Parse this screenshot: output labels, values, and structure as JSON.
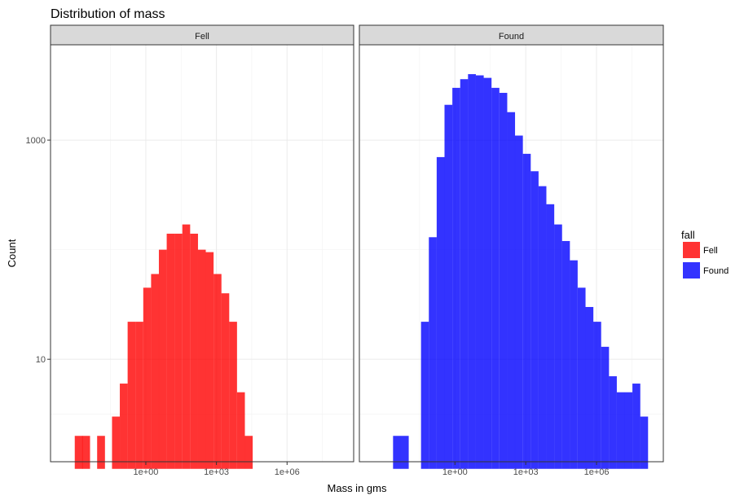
{
  "chart_data": {
    "type": "bar",
    "title": "Distribution of  mass",
    "xlabel": "Mass in gms",
    "ylabel": "Count",
    "x_scale": "log10",
    "y_scale": "log10",
    "x_ticks": [
      "1e+00",
      "1e+03",
      "1e+06"
    ],
    "y_ticks": [
      "10",
      "1000"
    ],
    "legend": {
      "title": "fall",
      "position": "right"
    },
    "panels": [
      {
        "name": "Fell",
        "color": "#ff0000",
        "bin_width_log10": 0.333,
        "bins": [
          {
            "x": 0.0014,
            "count": 2
          },
          {
            "x": 0.0029,
            "count": 2
          },
          {
            "x": 0.0125,
            "count": 2
          },
          {
            "x": 0.0536,
            "count": 3
          },
          {
            "x": 0.115,
            "count": 6
          },
          {
            "x": 0.247,
            "count": 22
          },
          {
            "x": 0.53,
            "count": 22
          },
          {
            "x": 1.14,
            "count": 45
          },
          {
            "x": 2.45,
            "count": 60
          },
          {
            "x": 5.25,
            "count": 100
          },
          {
            "x": 11.3,
            "count": 140
          },
          {
            "x": 24.2,
            "count": 140
          },
          {
            "x": 52,
            "count": 170
          },
          {
            "x": 112,
            "count": 140
          },
          {
            "x": 240,
            "count": 100
          },
          {
            "x": 515,
            "count": 95
          },
          {
            "x": 1110,
            "count": 60
          },
          {
            "x": 2380,
            "count": 40
          },
          {
            "x": 5100,
            "count": 22
          },
          {
            "x": 11000,
            "count": 5
          },
          {
            "x": 23600,
            "count": 2
          }
        ]
      },
      {
        "name": "Found",
        "color": "#0000ff",
        "bin_width_log10": 0.333,
        "bins": [
          {
            "x": 0.0035,
            "count": 2
          },
          {
            "x": 0.0075,
            "count": 2
          },
          {
            "x": 0.0536,
            "count": 22
          },
          {
            "x": 0.115,
            "count": 130
          },
          {
            "x": 0.247,
            "count": 700
          },
          {
            "x": 0.53,
            "count": 2100
          },
          {
            "x": 1.14,
            "count": 3000
          },
          {
            "x": 2.45,
            "count": 3600
          },
          {
            "x": 5.25,
            "count": 4000
          },
          {
            "x": 11.3,
            "count": 3900
          },
          {
            "x": 24.2,
            "count": 3700
          },
          {
            "x": 52,
            "count": 3000
          },
          {
            "x": 112,
            "count": 2700
          },
          {
            "x": 240,
            "count": 1800
          },
          {
            "x": 515,
            "count": 1100
          },
          {
            "x": 1110,
            "count": 750
          },
          {
            "x": 2380,
            "count": 520
          },
          {
            "x": 5100,
            "count": 380
          },
          {
            "x": 11000,
            "count": 260
          },
          {
            "x": 23600,
            "count": 170
          },
          {
            "x": 50600,
            "count": 120
          },
          {
            "x": 108000,
            "count": 80
          },
          {
            "x": 233000,
            "count": 45
          },
          {
            "x": 500000,
            "count": 30
          },
          {
            "x": 1070000,
            "count": 22
          },
          {
            "x": 2300000,
            "count": 13
          },
          {
            "x": 4930000,
            "count": 7
          },
          {
            "x": 10600000,
            "count": 5
          },
          {
            "x": 22700000,
            "count": 5
          },
          {
            "x": 48700000,
            "count": 6
          },
          {
            "x": 104000000,
            "count": 3
          }
        ]
      }
    ]
  }
}
